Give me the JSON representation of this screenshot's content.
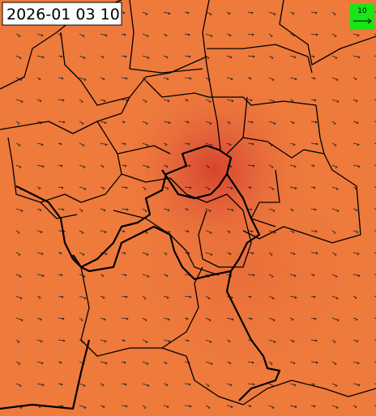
{
  "timestamp": "2026-01 03 10",
  "legend": {
    "label": "10"
  }
}
